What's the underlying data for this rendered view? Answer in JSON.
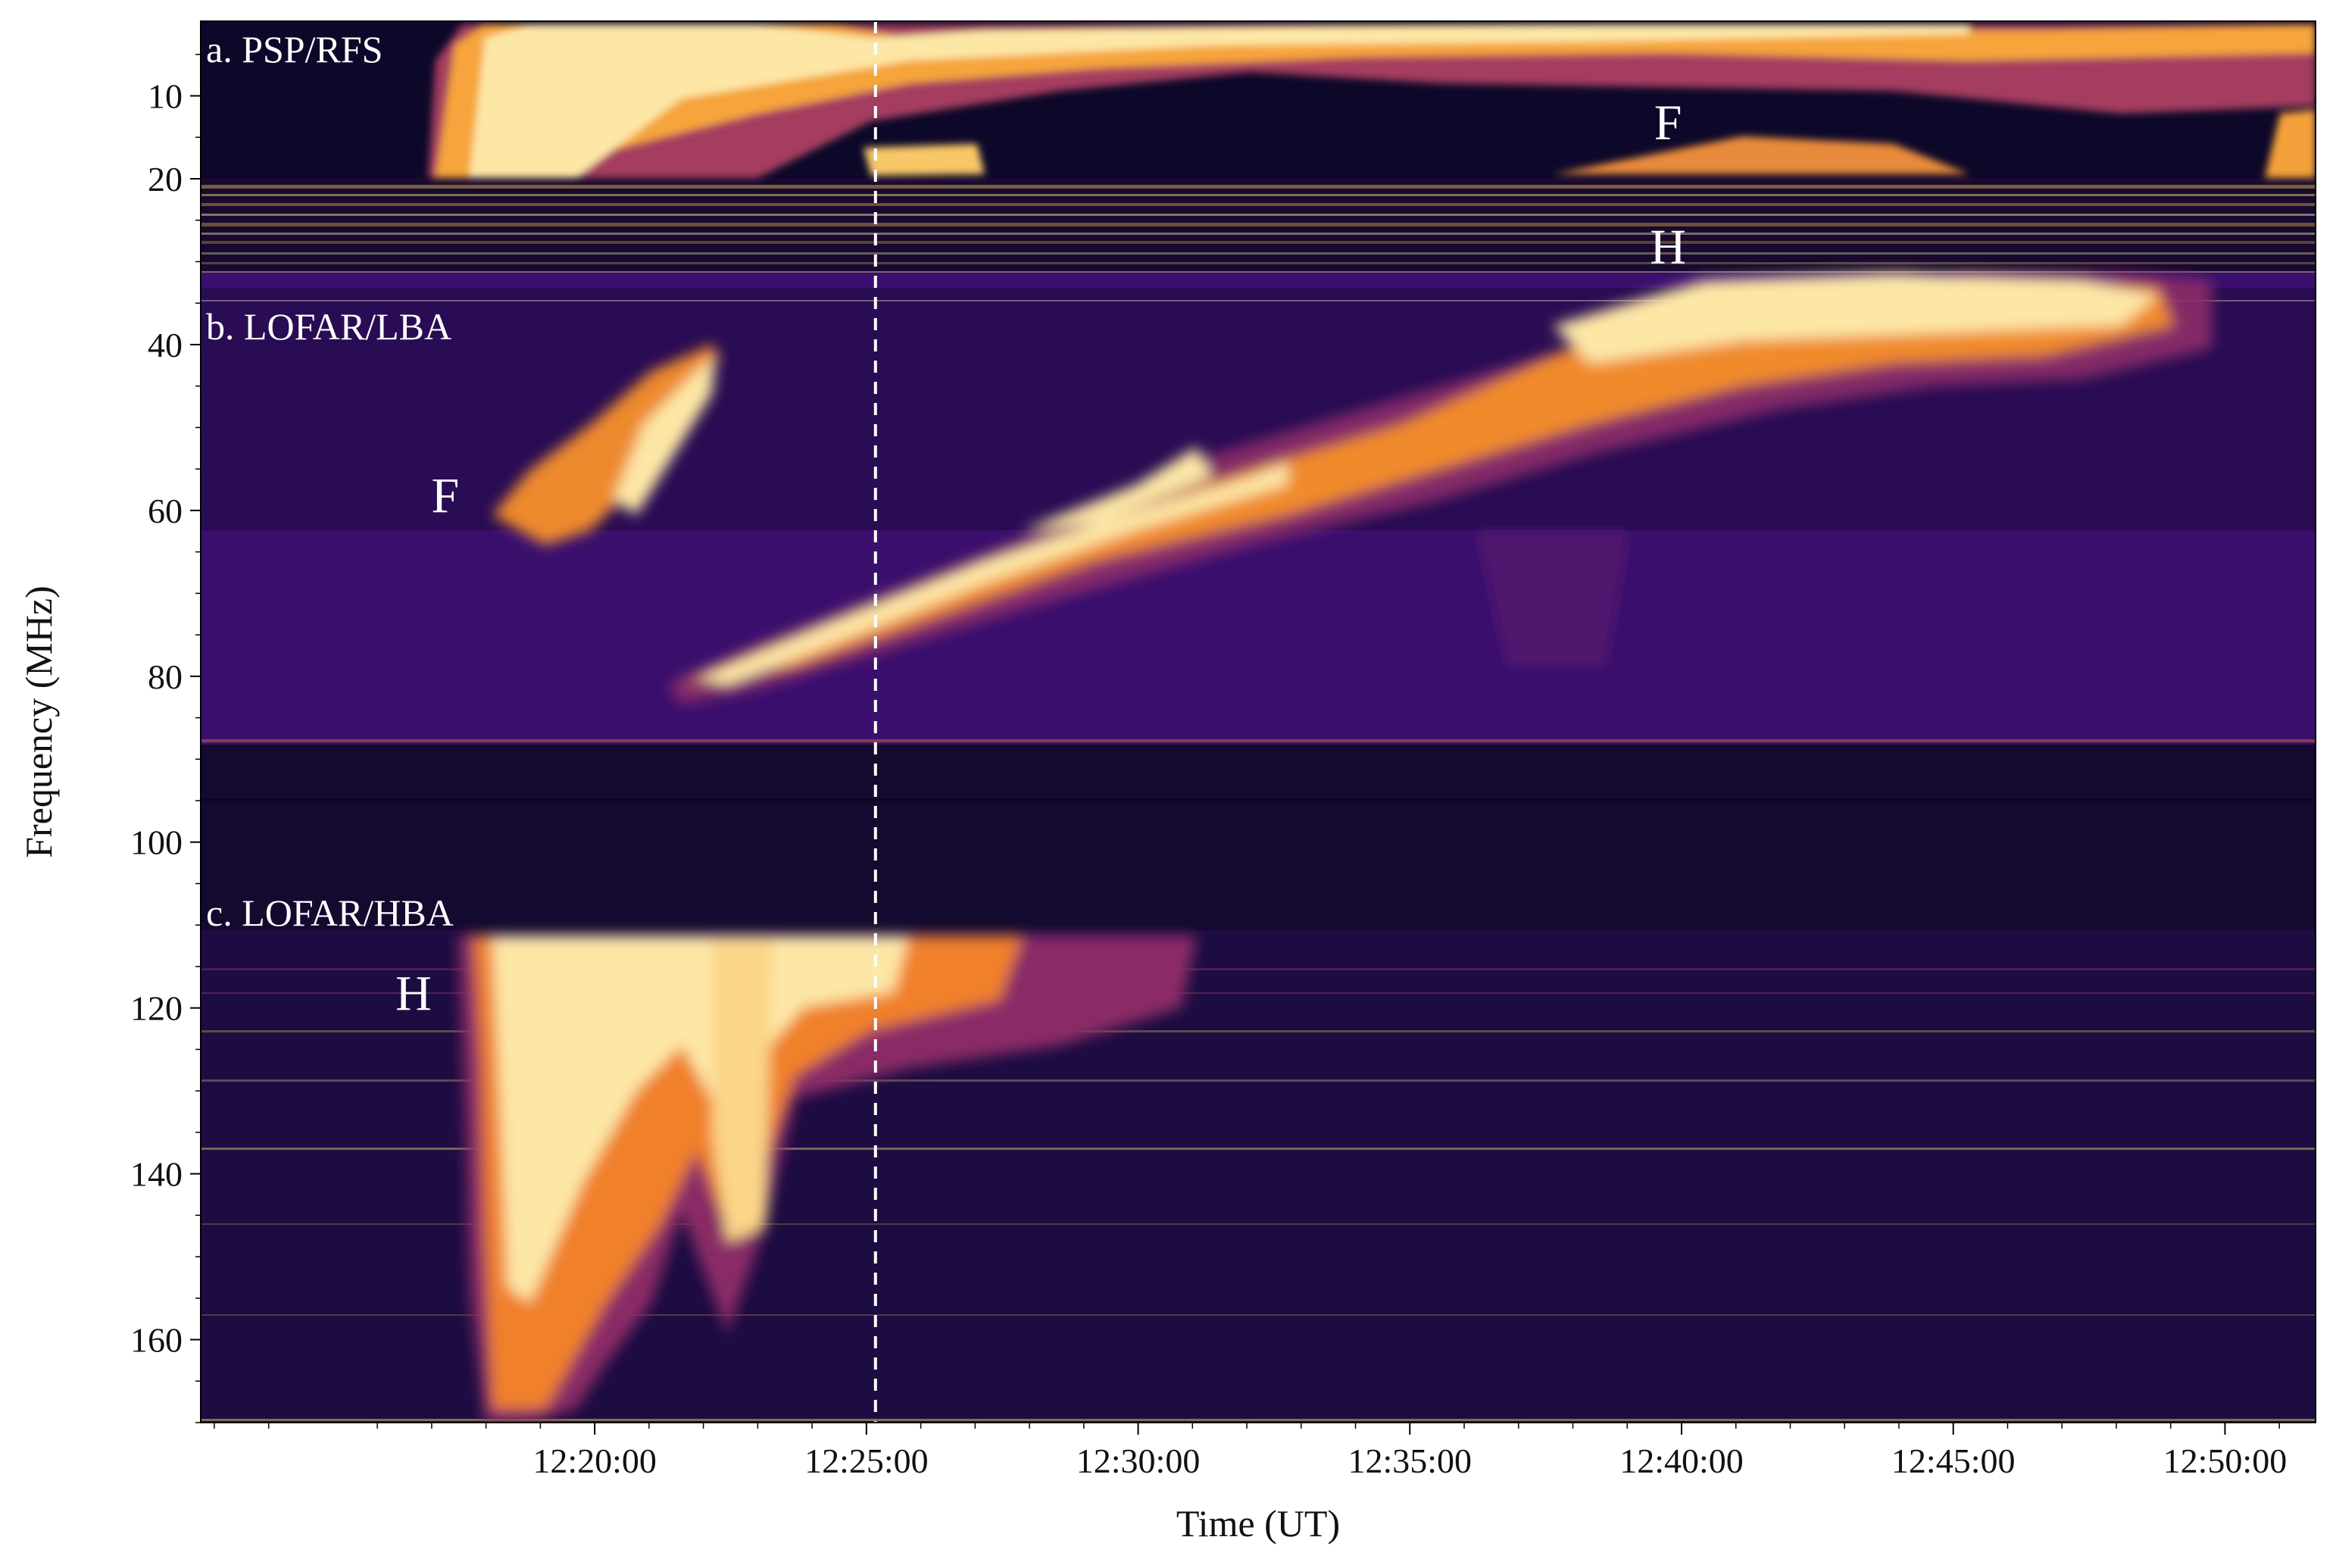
{
  "chart_data": {
    "type": "heatmap",
    "colormap": "inferno",
    "xlabel": "Time (UT)",
    "ylabel": "Frequency (MHz)",
    "x_unit": "UT",
    "xlim": [
      "12:12:45",
      "12:51:40"
    ],
    "ylim": [
      1,
      170
    ],
    "y_inverted": true,
    "x_ticks": [
      "12:20:00",
      "12:25:00",
      "12:30:00",
      "12:35:00",
      "12:40:00",
      "12:45:00",
      "12:50:00"
    ],
    "y_ticks": [
      10,
      20,
      40,
      60,
      80,
      100,
      120,
      140,
      160
    ],
    "panels": [
      {
        "label": "a. PSP/RFS",
        "freq_range": [
          1,
          20
        ],
        "time_range": [
          "12:12:45",
          "12:51:40"
        ]
      },
      {
        "label": "b. LOFAR/LBA",
        "freq_range": [
          20,
          88
        ],
        "time_range": [
          "12:12:45",
          "12:51:40"
        ]
      },
      {
        "label": "c. LOFAR/HBA",
        "freq_range": [
          110,
          170
        ],
        "time_range": [
          "12:12:45",
          "12:51:40"
        ]
      }
    ],
    "annotations": [
      {
        "text": "F",
        "time": "12:39:45",
        "freq": 13
      },
      {
        "text": "H",
        "time": "12:39:45",
        "freq": 28
      },
      {
        "text": "F",
        "time": "12:17:15",
        "freq": 58
      },
      {
        "text": "H",
        "time": "12:16:40",
        "freq": 118
      }
    ],
    "marker_line": {
      "time": "12:25:10",
      "style": "dashed",
      "color": "#ffffff"
    },
    "bursts": [
      {
        "band": "RFS",
        "t0": "12:16:50",
        "t1": "12:51:40",
        "f_top": 1,
        "f_bottom": 20,
        "intensity": "high"
      },
      {
        "band": "LBA",
        "t0": "12:17:15",
        "t1": "12:50:20",
        "f_start": 85,
        "f_end": 30,
        "intensity": "high"
      },
      {
        "band": "HBA",
        "t0": "12:17:50",
        "t1": "12:32:30",
        "f_start": 110,
        "f_end": 170,
        "intensity": "high"
      }
    ]
  }
}
